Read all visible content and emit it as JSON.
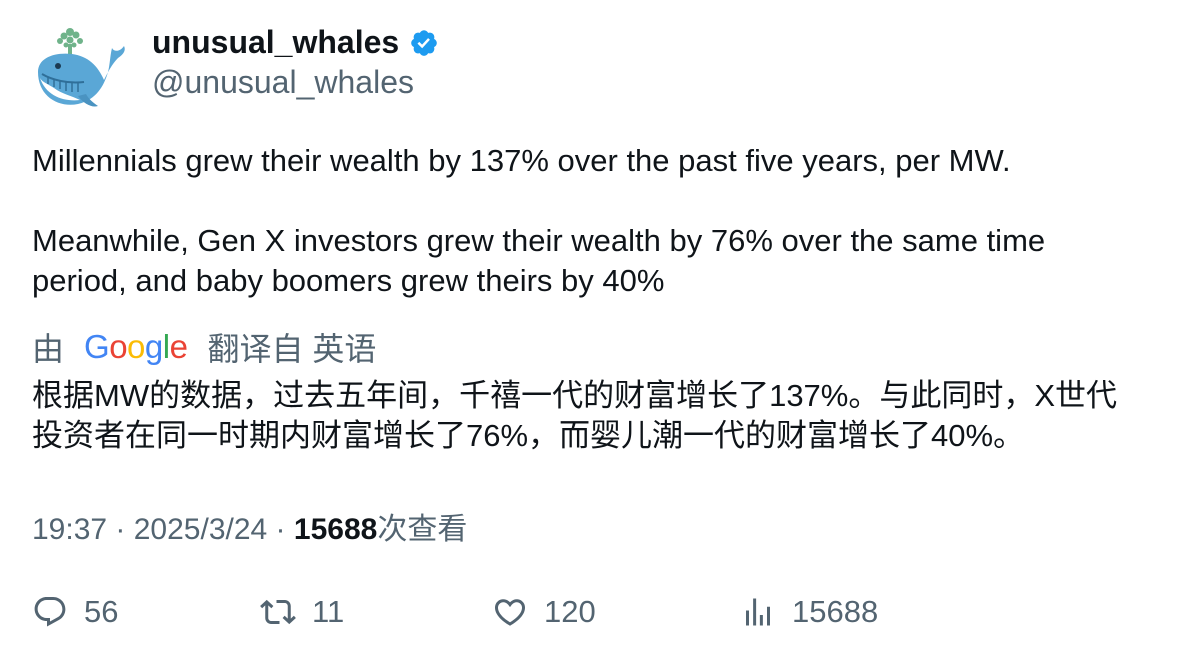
{
  "author": {
    "display_name": "unusual_whales",
    "handle": "@unusual_whales",
    "avatar_icon": "whale-logo-icon",
    "verified_icon": "verified-badge-icon",
    "verified_color": "#1d9bf0"
  },
  "tweet": {
    "paragraph1": "Millennials grew their wealth by 137% over the past five years, per MW.",
    "paragraph2_line1": "Meanwhile, Gen X investors grew their wealth by 76% over the same time",
    "paragraph2_line2": "period, and baby boomers grew theirs by 40%"
  },
  "translation": {
    "prefix": "由",
    "provider": "Google",
    "suffix": "翻译自 英语",
    "line1": "根据MW的数据，过去五年间，千禧一代的财富增长了137%。与此同时，X世代",
    "line2": "投资者在同一时期内财富增长了76%，而婴儿潮一代的财富增长了40%。"
  },
  "meta": {
    "time": "19:37",
    "separator": " · ",
    "date": "2025/3/24",
    "views_count": "15688",
    "views_label": "次查看"
  },
  "actions": {
    "replies": "56",
    "retweets": "11",
    "likes": "120",
    "views": "15688"
  }
}
